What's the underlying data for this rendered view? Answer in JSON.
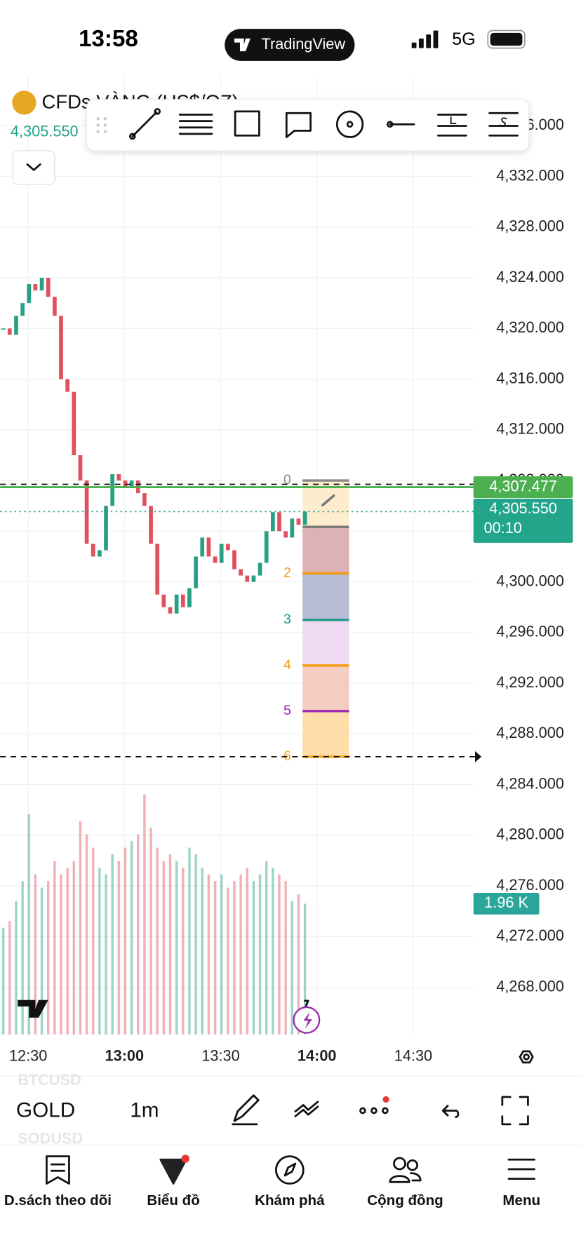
{
  "status_bar": {
    "time": "13:58",
    "brand": "TradingView",
    "network": "5G"
  },
  "symbol": {
    "name": "CFDs VÀNG (US$/OZ)",
    "price": "4,305.550"
  },
  "chart_data": {
    "type": "candlestick",
    "closes": [
      4320,
      4319.5,
      4321,
      4322,
      4323.5,
      4323,
      4324,
      4322.5,
      4321,
      4316,
      4315,
      4310,
      4308,
      4303,
      4302,
      4302.5,
      4306,
      4308.5,
      4308,
      4307.5,
      4308,
      4307,
      4306,
      4303,
      4299,
      4298,
      4297.5,
      4299,
      4298,
      4299.5,
      4302,
      4303.5,
      4302,
      4301.5,
      4303,
      4302.5,
      4301,
      4300.5,
      4300,
      4300.5,
      4301.5,
      4304,
      4305.5,
      4304,
      4303.5,
      4305,
      4304.5,
      4305.55
    ],
    "volumes": [
      1.6,
      1.7,
      2.0,
      2.3,
      3.3,
      2.4,
      2.2,
      2.3,
      2.6,
      2.4,
      2.5,
      2.6,
      3.2,
      3.0,
      2.8,
      2.5,
      2.4,
      2.7,
      2.6,
      2.8,
      2.9,
      3.0,
      3.6,
      3.1,
      2.8,
      2.6,
      2.7,
      2.6,
      2.5,
      2.8,
      2.7,
      2.5,
      2.4,
      2.3,
      2.4,
      2.2,
      2.3,
      2.4,
      2.5,
      2.3,
      2.4,
      2.6,
      2.5,
      2.4,
      2.3,
      2.0,
      2.1,
      1.96
    ],
    "colors": {
      "up": "#27a083",
      "down": "#e0515f"
    },
    "ylim": [
      4264,
      4340
    ],
    "yticks": [
      {
        "value": 4268,
        "label": "4,268.000"
      },
      {
        "value": 4272,
        "label": "4,272.000"
      },
      {
        "value": 4276,
        "label": "4,276.000"
      },
      {
        "value": 4280,
        "label": "4,280.000"
      },
      {
        "value": 4284,
        "label": "4,284.000"
      },
      {
        "value": 4288,
        "label": "4,288.000"
      },
      {
        "value": 4292,
        "label": "4,292.000"
      },
      {
        "value": 4296,
        "label": "4,296.000"
      },
      {
        "value": 4300,
        "label": "4,300.000"
      },
      {
        "value": 4304,
        "label": "4,304.000"
      },
      {
        "value": 4308,
        "label": "4,308.000"
      },
      {
        "value": 4312,
        "label": "4,312.000"
      },
      {
        "value": 4316,
        "label": "4,316.000"
      },
      {
        "value": 4320,
        "label": "4,320.000"
      },
      {
        "value": 4324,
        "label": "4,324.000"
      },
      {
        "value": 4328,
        "label": "4,328.000"
      },
      {
        "value": 4332,
        "label": "4,332.000"
      },
      {
        "value": 4336,
        "label": "4,336.000"
      }
    ],
    "x_labels": [
      "12:30",
      "13:00",
      "13:30",
      "14:00",
      "14:30"
    ],
    "grid": true,
    "dashed_lines": [
      4307.7,
      4286.2
    ],
    "price_lines": [
      {
        "value": 4307.477,
        "label": "4,307.477",
        "color": "#4caf50"
      },
      {
        "value": 4305.55,
        "label": "4,305.550",
        "countdown": "00:10",
        "color": "#22a58a"
      }
    ],
    "fib": {
      "labels": [
        "0",
        null,
        "2",
        "3",
        "4",
        "5",
        "6"
      ],
      "values": [
        4308.0,
        4304.34,
        4300.67,
        4297.0,
        4293.4,
        4289.8,
        4286.2
      ],
      "colors": [
        "#888888",
        "#777777",
        "#f39c12",
        "#1e9c8a",
        "#f39c12",
        "#9c27b0",
        "#f5a623"
      ],
      "fills": [
        "#fde9c4",
        "#d7a4aa",
        "#aab0cc",
        "#ecd3ef",
        "#f1c4b6",
        "#fdd89a"
      ]
    },
    "volume_tag": {
      "value": 1.96,
      "label": "1.96 K"
    }
  },
  "toolbar": {
    "symbols": [
      "BTCUSD",
      "GOLD",
      "SODUSD"
    ],
    "interval": "1m"
  },
  "nav": [
    "D.sách theo dõi",
    "Biểu đồ",
    "Khám phá",
    "Cộng đồng",
    "Menu"
  ]
}
